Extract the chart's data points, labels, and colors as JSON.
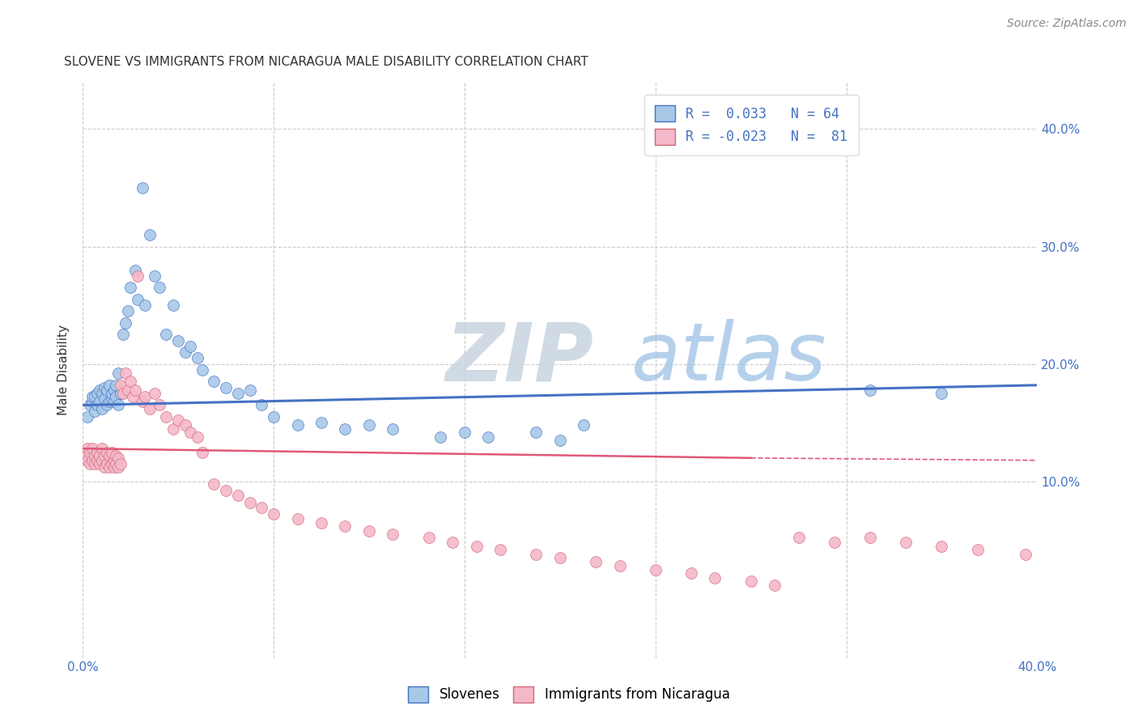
{
  "title": "SLOVENE VS IMMIGRANTS FROM NICARAGUA MALE DISABILITY CORRELATION CHART",
  "source": "Source: ZipAtlas.com",
  "ylabel": "Male Disability",
  "watermark_zip": "ZIP",
  "watermark_atlas": "atlas",
  "xlim": [
    0.0,
    0.4
  ],
  "ylim": [
    -0.05,
    0.44
  ],
  "xticks": [
    0.0,
    0.08,
    0.16,
    0.24,
    0.32,
    0.4
  ],
  "yticks": [
    0.1,
    0.2,
    0.3,
    0.4
  ],
  "series1_color": "#a8c8e8",
  "series2_color": "#f5b8c8",
  "line1_color": "#4472c4",
  "line2_color": "#e05878",
  "series1_name": "Slovenes",
  "series2_name": "Immigrants from Nicaragua",
  "legend1_r": "0.033",
  "legend1_n": "64",
  "legend2_r": "-0.023",
  "legend2_n": "81",
  "slovene_x": [
    0.002,
    0.003,
    0.004,
    0.004,
    0.005,
    0.005,
    0.006,
    0.006,
    0.007,
    0.007,
    0.008,
    0.008,
    0.009,
    0.009,
    0.01,
    0.01,
    0.011,
    0.011,
    0.012,
    0.012,
    0.013,
    0.013,
    0.014,
    0.014,
    0.015,
    0.015,
    0.016,
    0.017,
    0.018,
    0.019,
    0.02,
    0.022,
    0.023,
    0.025,
    0.026,
    0.028,
    0.03,
    0.032,
    0.035,
    0.038,
    0.04,
    0.043,
    0.045,
    0.048,
    0.05,
    0.055,
    0.06,
    0.065,
    0.07,
    0.075,
    0.08,
    0.09,
    0.1,
    0.11,
    0.12,
    0.13,
    0.15,
    0.16,
    0.17,
    0.19,
    0.2,
    0.21,
    0.33,
    0.36
  ],
  "slovene_y": [
    0.155,
    0.165,
    0.168,
    0.172,
    0.16,
    0.172,
    0.165,
    0.175,
    0.168,
    0.178,
    0.162,
    0.175,
    0.17,
    0.18,
    0.165,
    0.178,
    0.168,
    0.182,
    0.17,
    0.175,
    0.168,
    0.178,
    0.172,
    0.182,
    0.165,
    0.192,
    0.175,
    0.225,
    0.235,
    0.245,
    0.265,
    0.28,
    0.255,
    0.35,
    0.25,
    0.31,
    0.275,
    0.265,
    0.225,
    0.25,
    0.22,
    0.21,
    0.215,
    0.205,
    0.195,
    0.185,
    0.18,
    0.175,
    0.178,
    0.165,
    0.155,
    0.148,
    0.15,
    0.145,
    0.148,
    0.145,
    0.138,
    0.142,
    0.138,
    0.142,
    0.135,
    0.148,
    0.178,
    0.175
  ],
  "nicaragua_x": [
    0.001,
    0.002,
    0.002,
    0.003,
    0.003,
    0.004,
    0.004,
    0.005,
    0.005,
    0.006,
    0.006,
    0.007,
    0.007,
    0.008,
    0.008,
    0.009,
    0.009,
    0.01,
    0.01,
    0.011,
    0.011,
    0.012,
    0.012,
    0.013,
    0.013,
    0.014,
    0.014,
    0.015,
    0.015,
    0.016,
    0.016,
    0.017,
    0.018,
    0.019,
    0.02,
    0.021,
    0.022,
    0.023,
    0.025,
    0.026,
    0.028,
    0.03,
    0.032,
    0.035,
    0.038,
    0.04,
    0.043,
    0.045,
    0.048,
    0.05,
    0.055,
    0.06,
    0.065,
    0.07,
    0.075,
    0.08,
    0.09,
    0.1,
    0.11,
    0.12,
    0.13,
    0.145,
    0.155,
    0.165,
    0.175,
    0.19,
    0.2,
    0.215,
    0.225,
    0.24,
    0.255,
    0.265,
    0.28,
    0.29,
    0.3,
    0.315,
    0.33,
    0.345,
    0.36,
    0.375,
    0.395
  ],
  "nicaragua_y": [
    0.122,
    0.118,
    0.128,
    0.115,
    0.125,
    0.118,
    0.128,
    0.115,
    0.122,
    0.118,
    0.125,
    0.115,
    0.122,
    0.118,
    0.128,
    0.112,
    0.122,
    0.115,
    0.125,
    0.112,
    0.122,
    0.115,
    0.125,
    0.112,
    0.118,
    0.115,
    0.122,
    0.112,
    0.12,
    0.115,
    0.182,
    0.175,
    0.192,
    0.178,
    0.185,
    0.172,
    0.178,
    0.275,
    0.168,
    0.172,
    0.162,
    0.175,
    0.165,
    0.155,
    0.145,
    0.152,
    0.148,
    0.142,
    0.138,
    0.125,
    0.098,
    0.092,
    0.088,
    0.082,
    0.078,
    0.072,
    0.068,
    0.065,
    0.062,
    0.058,
    0.055,
    0.052,
    0.048,
    0.045,
    0.042,
    0.038,
    0.035,
    0.032,
    0.028,
    0.025,
    0.022,
    0.018,
    0.015,
    0.012,
    0.052,
    0.048,
    0.052,
    0.048,
    0.045,
    0.042,
    0.038
  ]
}
